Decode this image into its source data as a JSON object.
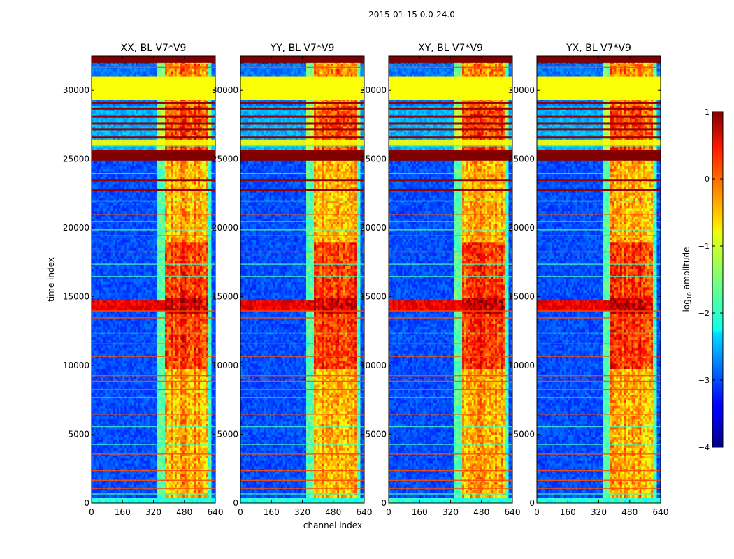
{
  "figure": {
    "suptitle": "2015-01-15 0.0-24.0",
    "xlabel": "channel index",
    "ylabel": "time index"
  },
  "chart_data": {
    "type": "heatmap",
    "xlim": [
      0,
      640
    ],
    "ylim": [
      0,
      32500
    ],
    "xticks": [
      0,
      160,
      320,
      480,
      640
    ],
    "yticks": [
      0,
      5000,
      10000,
      15000,
      20000,
      25000,
      30000
    ],
    "panels": [
      {
        "title": "XX, BL V7*V9"
      },
      {
        "title": "YY, BL V7*V9"
      },
      {
        "title": "XY, BL V7*V9"
      },
      {
        "title": "YX, BL V7*V9"
      }
    ],
    "colorbar": {
      "label_main": "log",
      "label_sub": "10",
      "label_tail": " amplitude",
      "ticks": [
        1,
        0,
        -1,
        -2,
        -3,
        -4
      ],
      "tick_labels": [
        "1",
        "0",
        "−1",
        "−2",
        "−3",
        "−4"
      ],
      "range": [
        -4,
        1
      ],
      "colormap": "jet"
    },
    "features": {
      "top_saturated_band": {
        "time_range": [
          32000,
          32500
        ],
        "value": 1.0
      },
      "flag_block": {
        "time_range": [
          29300,
          31000
        ],
        "value": -0.9
      },
      "rfi_band_channels": [
        380,
        600
      ],
      "strong_band_time": [
        13700,
        15000
      ],
      "background_level": -3.0,
      "strong_rows": [
        25000,
        25600,
        23500,
        22800,
        27200,
        27600,
        28100,
        28700,
        29100,
        30950,
        26600
      ],
      "medium_rows": [
        1100,
        1700,
        2400,
        3600,
        6500,
        8300,
        8900,
        9300,
        10700,
        11600,
        13500,
        14000,
        18300,
        19500,
        21000,
        31700
      ],
      "light_rows": [
        300,
        700,
        4300,
        5600,
        7700,
        12400,
        16500,
        17400,
        19900,
        20500,
        22000,
        24000,
        26000
      ]
    }
  }
}
